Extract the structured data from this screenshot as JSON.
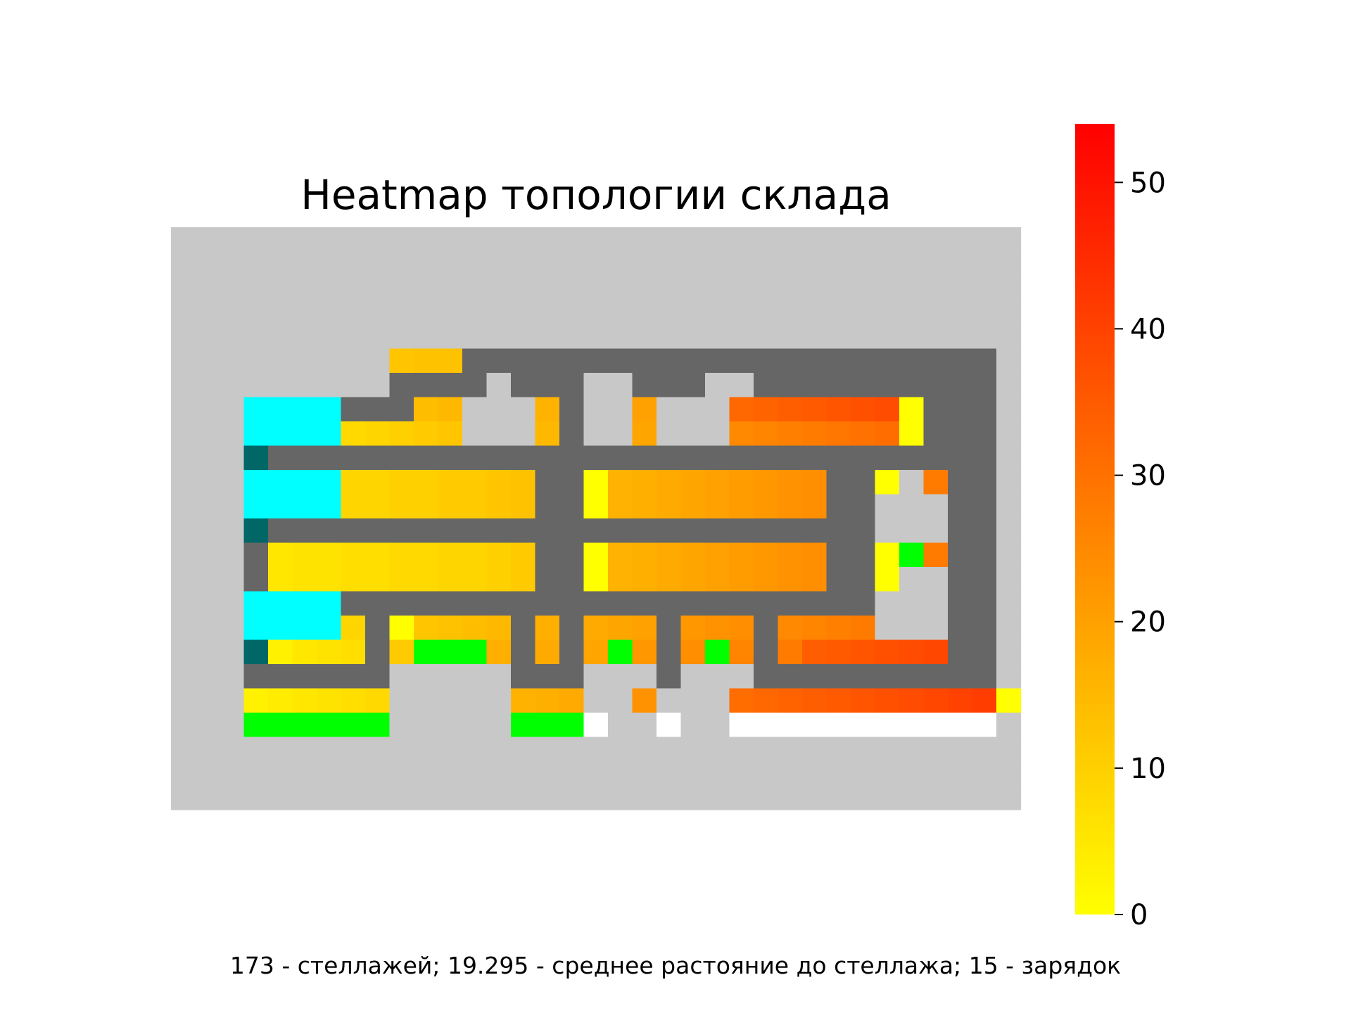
{
  "chart_data": {
    "type": "heatmap",
    "title": "Heatmap топологии склада",
    "caption": "173 - стеллажей; 19.295 - среднее растояние до стеллажа; 15 - зарядок",
    "grid_on": false,
    "legend": "colorbar-right",
    "colorbar": {
      "range": [
        0,
        54
      ],
      "ticks": [
        0,
        10,
        20,
        30,
        40,
        50
      ],
      "tick_labels": [
        "0",
        "10",
        "20",
        "30",
        "40",
        "50"
      ],
      "colormap": [
        "#ffff00",
        "#ff0000"
      ]
    },
    "cell_types": {
      "G": {
        "meaning": "outside",
        "color": "#c8c8c8"
      },
      "D": {
        "meaning": "aisle",
        "color": "#666666"
      },
      "C": {
        "meaning": "zone",
        "color": "#00ffff"
      },
      "T": {
        "meaning": "marker",
        "color": "#006666"
      },
      "L": {
        "meaning": "green",
        "color": "#00ff00"
      },
      "W": {
        "meaning": "white",
        "color": "#ffffff"
      }
    },
    "dims": [
      24,
      35
    ],
    "rows": [
      "GGGGGGGGGGGGGGGGGGGGGGGGGGGGGGGGGGG",
      "GGGGGGGGGGGGGGGGGGGGGGGGGGGGGGGGGGG",
      "GGGGGGGGGGGGGGGGGGGGGGGGGGGGGGGGGGG",
      "GGGGGGGGGGGGGGGGGGGGGGGGGGGGGGGGGGG",
      "GGGGGGGGGGGGGGGGGGGGGGGGGGGGGGGGGGG",
      "GGGGGGGGG111DDDDDDDDDDDDDDDDDDDDDDG",
      "GGGGGGGGGDDDDGDDDGGDDDGGDDDDDDDDDDG",
      "GGGCCCCDDD11GGG1DGG2GGG22222222DDDG",
      "GGGCCCC11111GGG1DGG2GGG22222222DDDG",
      "GGGTDDDDDDDDDDDDDDDDDDDDDDDDDDDDDDG",
      "GGGCCCC11111111DD2222222222DD2G2DDG",
      "GGGCCCC11111111DD2222222222DDGGGDDG",
      "GGGTDDDDDDDDDDDDDDDDDDDDDDDDDGGGDDG",
      "GGGD11111111111DD2222222222DD2L2DDG",
      "GGGD11111111111DD2222222222DD2GGDDG",
      "GGGCCCCDDDDDDDDDDDDDDDDDDDDDDGGGDDG",
      "GGGCCCC1D11111D1D222D222D2222GGGDDG",
      "GGGT1111D1LLL1D1D2L2D2L2D2222222DDG",
      "GGGDDDDDDGGGGGDDDGGGDGGGDDDDDDDDDDG",
      "GGG111111GGGGG222GG2GGG222222222222G",
      "GGGLLLLLLGGGGGLLLWGGWGGWWWWWWWWWWWG",
      "GGGGGGGGGGGGGGGGGGGGGGGGGGGGGGGGGGG",
      "GGGGGGGGGGGGGGGGGGGGGGGGGGGGGGGGGGG",
      "GGGGGGGGGGGGGGGGGGGGGGGGGGGGGGGGGGG"
    ],
    "value_rows": {
      "5": [
        0,
        0,
        0,
        0,
        0,
        0,
        0,
        0,
        0,
        12,
        13,
        13,
        0,
        0,
        0,
        0,
        0,
        0,
        0,
        0,
        0,
        0,
        0,
        0,
        0,
        0,
        0,
        0,
        0,
        0,
        0,
        0,
        0,
        0,
        0
      ],
      "7": [
        0,
        0,
        0,
        0,
        0,
        0,
        0,
        0,
        0,
        0,
        14,
        15,
        0,
        0,
        0,
        16,
        0,
        0,
        0,
        20,
        0,
        0,
        0,
        32,
        33,
        34,
        35,
        36,
        37,
        38,
        0,
        0,
        0,
        0,
        0
      ],
      "8": [
        0,
        0,
        0,
        0,
        0,
        0,
        0,
        8,
        9,
        10,
        11,
        12,
        0,
        0,
        0,
        15,
        0,
        0,
        0,
        19,
        0,
        0,
        0,
        25,
        26,
        27,
        28,
        29,
        30,
        31,
        0,
        0,
        0,
        0,
        0
      ],
      "10": [
        0,
        0,
        0,
        0,
        0,
        0,
        0,
        9,
        9,
        10,
        10,
        11,
        11,
        12,
        13,
        14,
        0,
        0,
        16,
        17,
        18,
        19,
        20,
        21,
        22,
        23,
        24,
        25,
        26,
        0,
        0,
        28,
        0,
        33,
        0
      ],
      "11": [
        0,
        0,
        0,
        0,
        0,
        0,
        0,
        9,
        9,
        10,
        10,
        11,
        11,
        12,
        13,
        14,
        0,
        0,
        16,
        17,
        18,
        19,
        20,
        21,
        22,
        23,
        24,
        25,
        26,
        0,
        0,
        0,
        0,
        0,
        0
      ],
      "13": [
        0,
        0,
        0,
        0,
        5,
        6,
        6,
        7,
        7,
        8,
        8,
        9,
        9,
        10,
        11,
        12,
        0,
        0,
        16,
        17,
        18,
        19,
        20,
        21,
        22,
        23,
        24,
        25,
        26,
        0,
        0,
        28,
        0,
        35,
        0
      ],
      "14": [
        0,
        0,
        0,
        0,
        5,
        6,
        6,
        7,
        7,
        8,
        8,
        9,
        9,
        10,
        11,
        12,
        0,
        0,
        16,
        17,
        18,
        19,
        20,
        21,
        22,
        23,
        24,
        25,
        26,
        0,
        0,
        27,
        0,
        0,
        0
      ],
      "16": [
        0,
        0,
        0,
        0,
        0,
        0,
        0,
        9,
        0,
        0,
        12,
        13,
        14,
        15,
        0,
        17,
        0,
        18,
        19,
        20,
        0,
        22,
        23,
        24,
        0,
        25,
        26,
        27,
        28,
        0,
        0,
        0,
        0,
        0,
        0
      ],
      "17": [
        0,
        0,
        0,
        0,
        3,
        5,
        6,
        7,
        0,
        11,
        0,
        0,
        0,
        17,
        0,
        18,
        0,
        19,
        0,
        22,
        0,
        24,
        0,
        26,
        0,
        28,
        34,
        35,
        36,
        37,
        38,
        39,
        40,
        0,
        0
      ],
      "19": [
        0,
        0,
        0,
        3,
        4,
        5,
        6,
        7,
        8,
        0,
        0,
        0,
        0,
        0,
        16,
        17,
        18,
        0,
        0,
        23,
        0,
        0,
        0,
        31,
        32,
        33,
        34,
        35,
        36,
        37,
        38,
        39,
        40,
        41,
        0
      ]
    }
  }
}
